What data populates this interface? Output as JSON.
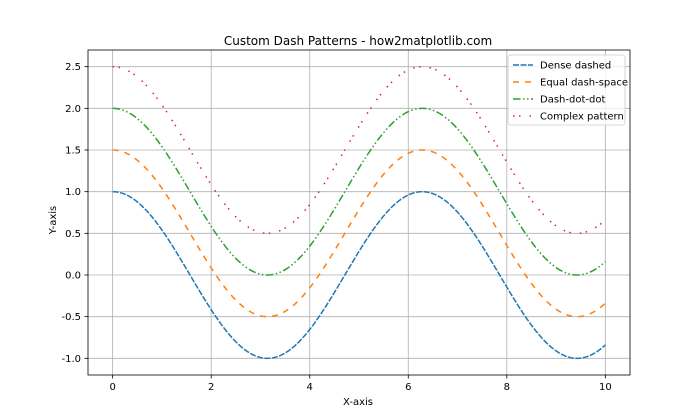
{
  "chart_data": {
    "type": "line",
    "title": "Custom Dash Patterns - how2matplotlib.com",
    "xlabel": "X-axis",
    "ylabel": "Y-axis",
    "xlim": [
      -0.5,
      10.5
    ],
    "ylim": [
      -1.2,
      2.7
    ],
    "xticks": [
      0,
      2,
      4,
      6,
      8,
      10
    ],
    "xtick_labels": [
      "0",
      "2",
      "4",
      "6",
      "8",
      "10"
    ],
    "yticks": [
      -1.0,
      -0.5,
      0.0,
      0.5,
      1.0,
      1.5,
      2.0,
      2.5
    ],
    "ytick_labels": [
      "-1.0",
      "-0.5",
      "0.0",
      "0.5",
      "1.0",
      "1.5",
      "2.0",
      "2.5"
    ],
    "grid": true,
    "legend_position": "top-right",
    "series": [
      {
        "name": "Dense dashed",
        "function": "cos(x) + 0.0",
        "x_range": [
          0,
          10
        ],
        "color": "#1f77b4",
        "dash": "dense dashed"
      },
      {
        "name": "Equal dash-space",
        "function": "cos(x) + 0.5",
        "x_range": [
          0,
          10
        ],
        "color": "#ff7f0e",
        "dash": "equal dash-space"
      },
      {
        "name": "Dash-dot-dot",
        "function": "cos(x) + 1.0",
        "x_range": [
          0,
          10
        ],
        "color": "#2ca02c",
        "dash": "dash-dot-dot"
      },
      {
        "name": "Complex pattern",
        "function": "cos(x) + 1.5",
        "x_range": [
          0,
          10
        ],
        "color": "#d62728",
        "dash": "complex"
      }
    ]
  }
}
